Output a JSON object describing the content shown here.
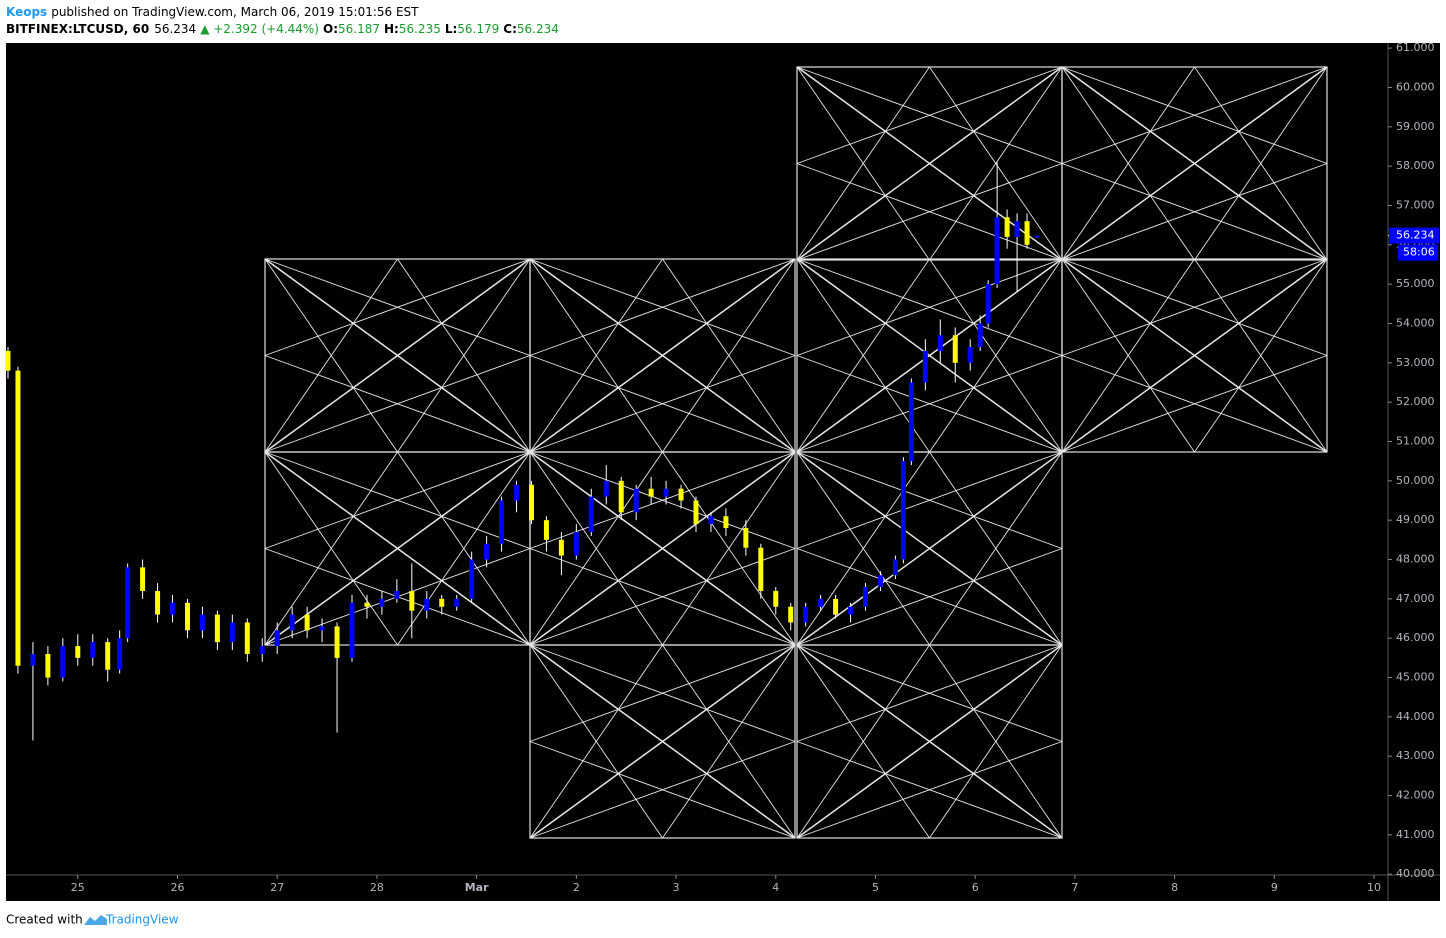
{
  "header": {
    "author": "Keops",
    "published": "published on TradingView.com, March 06, 2019 15:01:56 EST",
    "symbol": "BITFINEX:LTCUSD, 60",
    "last": "56.234",
    "change": "▲ +2.392 (+4.44%)",
    "open_label": "O:",
    "open": "56.187",
    "high_label": "H:",
    "high": "56.235",
    "low_label": "L:",
    "low": "56.179",
    "close_label": "C:",
    "close": "56.234"
  },
  "footer": {
    "created": "Created with",
    "brand": "TradingView"
  },
  "chart_data": {
    "type": "candlestick",
    "up_color": "#0000ff",
    "down_color": "#ffff00",
    "grid": false,
    "last_price": 56.234,
    "countdown": "58:06",
    "xlim": [
      24.28,
      38.14
    ],
    "ylim": [
      39.98,
      61.13
    ],
    "xticks": [
      25,
      26,
      27,
      28,
      {
        "value": 29,
        "label": "Mar"
      },
      {
        "value": 30,
        "label": "2"
      },
      {
        "value": 31,
        "label": "3"
      },
      {
        "value": 32,
        "label": "4"
      },
      {
        "value": 33,
        "label": "5"
      },
      {
        "value": 34,
        "label": "6"
      },
      {
        "value": 35,
        "label": "7"
      },
      {
        "value": 36,
        "label": "8"
      },
      {
        "value": 37,
        "label": "9"
      },
      {
        "value": 38,
        "label": "10"
      }
    ],
    "yticks": [
      {
        "value": 40,
        "label": "40.000"
      },
      {
        "value": 41,
        "label": "41.000"
      },
      {
        "value": 42,
        "label": "42.000"
      },
      {
        "value": 43,
        "label": "43.000"
      },
      {
        "value": 44,
        "label": "44.000"
      },
      {
        "value": 45,
        "label": "45.000"
      },
      {
        "value": 46,
        "label": "46.000"
      },
      {
        "value": 47,
        "label": "47.000"
      },
      {
        "value": 48,
        "label": "48.000"
      },
      {
        "value": 49,
        "label": "49.000"
      },
      {
        "value": 50,
        "label": "50.000"
      },
      {
        "value": 51,
        "label": "51.000"
      },
      {
        "value": 52,
        "label": "52.000"
      },
      {
        "value": 53,
        "label": "53.000"
      },
      {
        "value": 54,
        "label": "54.000"
      },
      {
        "value": 55,
        "label": "55.000"
      },
      {
        "value": 56,
        "label": "56.000"
      },
      {
        "value": 57,
        "label": "57.000"
      },
      {
        "value": 58,
        "label": "58.000"
      },
      {
        "value": 59,
        "label": "59.000"
      },
      {
        "value": 60,
        "label": "60.000"
      },
      {
        "value": 61,
        "label": "61.000"
      }
    ],
    "candles": [
      {
        "x": 24.3,
        "o": 53.3,
        "h": 53.4,
        "l": 52.6,
        "c": 52.8
      },
      {
        "x": 24.4,
        "o": 52.8,
        "h": 52.9,
        "l": 45.1,
        "c": 45.3
      },
      {
        "x": 24.55,
        "o": 45.3,
        "h": 45.9,
        "l": 43.4,
        "c": 45.6
      },
      {
        "x": 24.7,
        "o": 45.6,
        "h": 45.8,
        "l": 44.8,
        "c": 45.0
      },
      {
        "x": 24.85,
        "o": 45.0,
        "h": 46.0,
        "l": 44.9,
        "c": 45.8
      },
      {
        "x": 25.0,
        "o": 45.8,
        "h": 46.1,
        "l": 45.3,
        "c": 45.5
      },
      {
        "x": 25.15,
        "o": 45.5,
        "h": 46.1,
        "l": 45.3,
        "c": 45.9
      },
      {
        "x": 25.3,
        "o": 45.9,
        "h": 46.0,
        "l": 44.9,
        "c": 45.2
      },
      {
        "x": 25.42,
        "o": 45.2,
        "h": 46.2,
        "l": 45.1,
        "c": 46.0
      },
      {
        "x": 25.5,
        "o": 46.0,
        "h": 47.9,
        "l": 45.9,
        "c": 47.8
      },
      {
        "x": 25.65,
        "o": 47.8,
        "h": 48.0,
        "l": 47.0,
        "c": 47.2
      },
      {
        "x": 25.8,
        "o": 47.2,
        "h": 47.4,
        "l": 46.4,
        "c": 46.6
      },
      {
        "x": 25.95,
        "o": 46.6,
        "h": 47.1,
        "l": 46.4,
        "c": 46.9
      },
      {
        "x": 26.1,
        "o": 46.9,
        "h": 47.0,
        "l": 46.0,
        "c": 46.2
      },
      {
        "x": 26.25,
        "o": 46.2,
        "h": 46.8,
        "l": 46.0,
        "c": 46.6
      },
      {
        "x": 26.4,
        "o": 46.6,
        "h": 46.7,
        "l": 45.7,
        "c": 45.9
      },
      {
        "x": 26.55,
        "o": 45.9,
        "h": 46.6,
        "l": 45.7,
        "c": 46.4
      },
      {
        "x": 26.7,
        "o": 46.4,
        "h": 46.5,
        "l": 45.4,
        "c": 45.6
      },
      {
        "x": 26.85,
        "o": 45.6,
        "h": 46.0,
        "l": 45.4,
        "c": 45.8
      },
      {
        "x": 27.0,
        "o": 45.8,
        "h": 46.4,
        "l": 45.6,
        "c": 46.2
      },
      {
        "x": 27.15,
        "o": 46.2,
        "h": 46.8,
        "l": 46.0,
        "c": 46.6
      },
      {
        "x": 27.3,
        "o": 46.6,
        "h": 46.8,
        "l": 46.0,
        "c": 46.2
      },
      {
        "x": 27.45,
        "o": 46.2,
        "h": 46.5,
        "l": 45.9,
        "c": 46.3
      },
      {
        "x": 27.6,
        "o": 46.3,
        "h": 46.4,
        "l": 43.6,
        "c": 45.5
      },
      {
        "x": 27.75,
        "o": 45.5,
        "h": 47.1,
        "l": 45.4,
        "c": 46.9
      },
      {
        "x": 27.9,
        "o": 46.9,
        "h": 47.1,
        "l": 46.5,
        "c": 46.8
      },
      {
        "x": 28.05,
        "o": 46.8,
        "h": 47.2,
        "l": 46.6,
        "c": 47.0
      },
      {
        "x": 28.2,
        "o": 47.0,
        "h": 47.5,
        "l": 46.9,
        "c": 47.2
      },
      {
        "x": 28.35,
        "o": 47.2,
        "h": 47.9,
        "l": 46.0,
        "c": 46.7
      },
      {
        "x": 28.5,
        "o": 46.7,
        "h": 47.2,
        "l": 46.5,
        "c": 47.0
      },
      {
        "x": 28.65,
        "o": 47.0,
        "h": 47.1,
        "l": 46.6,
        "c": 46.8
      },
      {
        "x": 28.8,
        "o": 46.8,
        "h": 47.1,
        "l": 46.7,
        "c": 47.0
      },
      {
        "x": 28.95,
        "o": 47.0,
        "h": 48.2,
        "l": 46.9,
        "c": 48.0
      },
      {
        "x": 29.1,
        "o": 48.0,
        "h": 48.6,
        "l": 47.8,
        "c": 48.4
      },
      {
        "x": 29.25,
        "o": 48.4,
        "h": 49.6,
        "l": 48.2,
        "c": 49.5
      },
      {
        "x": 29.4,
        "o": 49.5,
        "h": 50.0,
        "l": 49.2,
        "c": 49.9
      },
      {
        "x": 29.55,
        "o": 49.9,
        "h": 50.0,
        "l": 48.9,
        "c": 49.0
      },
      {
        "x": 29.7,
        "o": 49.0,
        "h": 49.1,
        "l": 48.2,
        "c": 48.5
      },
      {
        "x": 29.85,
        "o": 48.5,
        "h": 48.7,
        "l": 47.6,
        "c": 48.1
      },
      {
        "x": 30.0,
        "o": 48.1,
        "h": 48.9,
        "l": 48.0,
        "c": 48.7
      },
      {
        "x": 30.15,
        "o": 48.7,
        "h": 49.8,
        "l": 48.6,
        "c": 49.6
      },
      {
        "x": 30.3,
        "o": 49.6,
        "h": 50.4,
        "l": 49.4,
        "c": 50.0
      },
      {
        "x": 30.45,
        "o": 50.0,
        "h": 50.1,
        "l": 49.0,
        "c": 49.2
      },
      {
        "x": 30.6,
        "o": 49.2,
        "h": 49.9,
        "l": 49.0,
        "c": 49.8
      },
      {
        "x": 30.75,
        "o": 49.8,
        "h": 50.1,
        "l": 49.4,
        "c": 49.6
      },
      {
        "x": 30.9,
        "o": 49.6,
        "h": 50.0,
        "l": 49.4,
        "c": 49.8
      },
      {
        "x": 31.05,
        "o": 49.8,
        "h": 49.9,
        "l": 49.3,
        "c": 49.5
      },
      {
        "x": 31.2,
        "o": 49.5,
        "h": 49.6,
        "l": 48.7,
        "c": 48.9
      },
      {
        "x": 31.35,
        "o": 48.9,
        "h": 49.2,
        "l": 48.7,
        "c": 49.1
      },
      {
        "x": 31.5,
        "o": 49.1,
        "h": 49.3,
        "l": 48.6,
        "c": 48.8
      },
      {
        "x": 31.7,
        "o": 48.8,
        "h": 49.0,
        "l": 48.1,
        "c": 48.3
      },
      {
        "x": 31.85,
        "o": 48.3,
        "h": 48.4,
        "l": 47.0,
        "c": 47.2
      },
      {
        "x": 32.0,
        "o": 47.2,
        "h": 47.3,
        "l": 46.6,
        "c": 46.8
      },
      {
        "x": 32.15,
        "o": 46.8,
        "h": 46.9,
        "l": 46.2,
        "c": 46.4
      },
      {
        "x": 32.3,
        "o": 46.4,
        "h": 46.9,
        "l": 46.3,
        "c": 46.8
      },
      {
        "x": 32.45,
        "o": 46.8,
        "h": 47.1,
        "l": 46.7,
        "c": 47.0
      },
      {
        "x": 32.6,
        "o": 47.0,
        "h": 47.1,
        "l": 46.5,
        "c": 46.6
      },
      {
        "x": 32.75,
        "o": 46.6,
        "h": 46.9,
        "l": 46.4,
        "c": 46.8
      },
      {
        "x": 32.9,
        "o": 46.8,
        "h": 47.4,
        "l": 46.7,
        "c": 47.3
      },
      {
        "x": 33.05,
        "o": 47.3,
        "h": 47.7,
        "l": 47.2,
        "c": 47.6
      },
      {
        "x": 33.2,
        "o": 47.6,
        "h": 48.1,
        "l": 47.5,
        "c": 48.0
      },
      {
        "x": 33.28,
        "o": 48.0,
        "h": 50.6,
        "l": 47.9,
        "c": 50.5
      },
      {
        "x": 33.36,
        "o": 50.5,
        "h": 52.6,
        "l": 50.4,
        "c": 52.5
      },
      {
        "x": 33.5,
        "o": 52.5,
        "h": 53.6,
        "l": 52.3,
        "c": 53.3
      },
      {
        "x": 33.65,
        "o": 53.3,
        "h": 54.1,
        "l": 53.0,
        "c": 53.7
      },
      {
        "x": 33.8,
        "o": 53.7,
        "h": 53.9,
        "l": 52.5,
        "c": 53.0
      },
      {
        "x": 33.95,
        "o": 53.0,
        "h": 53.6,
        "l": 52.8,
        "c": 53.4
      },
      {
        "x": 34.05,
        "o": 53.4,
        "h": 54.2,
        "l": 53.3,
        "c": 54.0
      },
      {
        "x": 34.13,
        "o": 54.0,
        "h": 55.1,
        "l": 53.9,
        "c": 55.0
      },
      {
        "x": 34.22,
        "o": 55.0,
        "h": 58.1,
        "l": 54.9,
        "c": 56.7
      },
      {
        "x": 34.32,
        "o": 56.7,
        "h": 56.9,
        "l": 55.9,
        "c": 56.2
      },
      {
        "x": 34.42,
        "o": 56.2,
        "h": 56.8,
        "l": 54.8,
        "c": 56.6
      },
      {
        "x": 34.52,
        "o": 56.6,
        "h": 56.8,
        "l": 55.9,
        "c": 56.0
      },
      {
        "x": 34.62,
        "o": 56.187,
        "h": 56.235,
        "l": 56.179,
        "c": 56.234
      }
    ]
  }
}
